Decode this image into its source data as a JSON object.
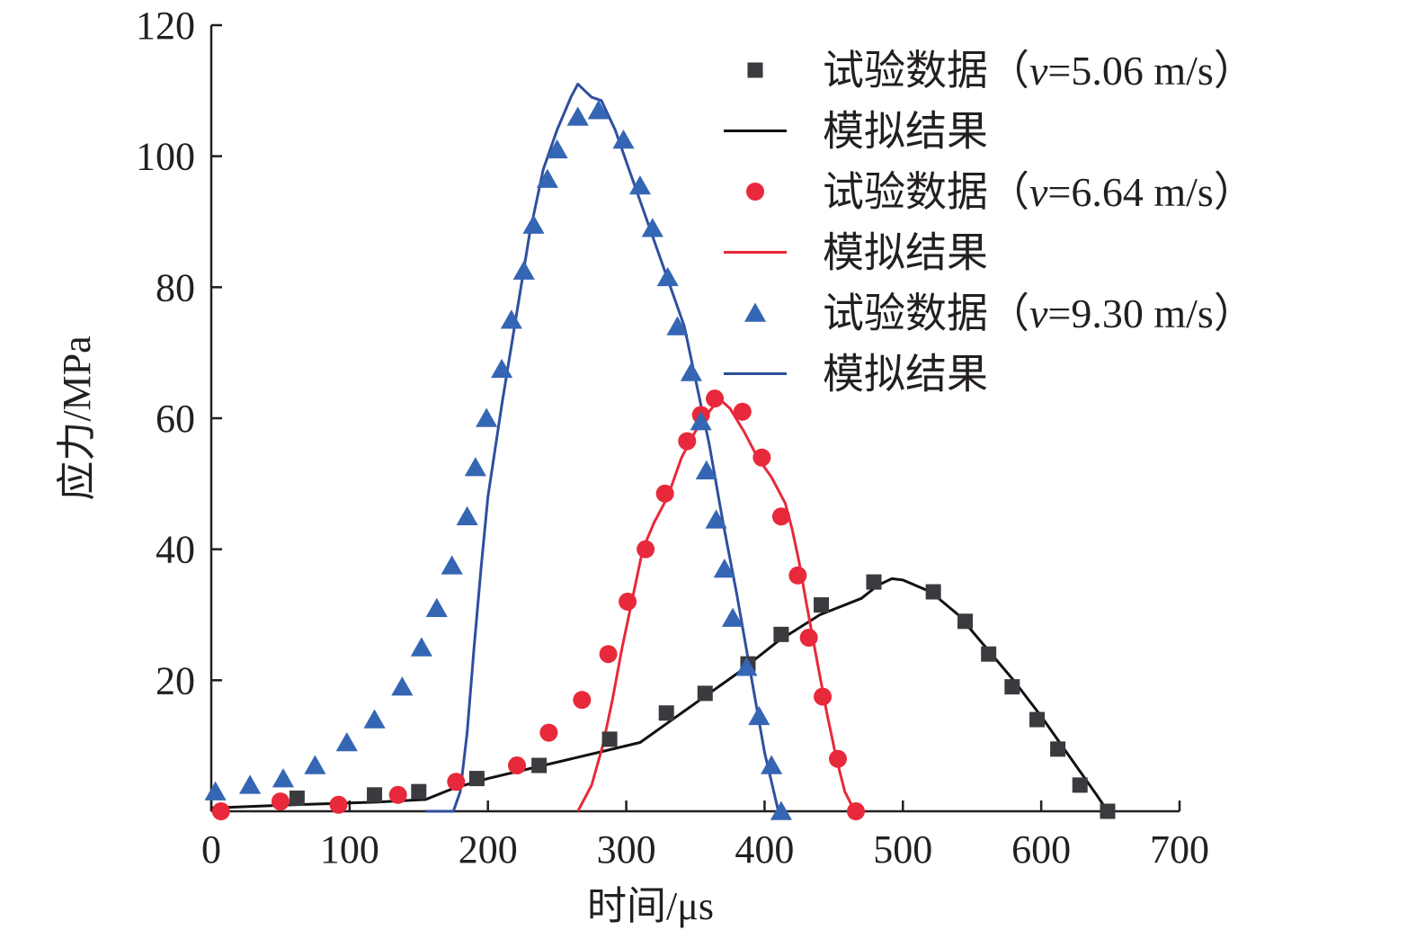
{
  "chart_data": {
    "type": "scatter",
    "title": "",
    "xlabel": "时间/μs",
    "ylabel": "应力/MPa",
    "xlim": [
      0,
      700
    ],
    "ylim": [
      0,
      120
    ],
    "xticks": [
      0,
      100,
      200,
      300,
      400,
      500,
      600,
      700
    ],
    "yticks": [
      20,
      40,
      60,
      80,
      100,
      120
    ],
    "grid": false,
    "legend_position": "top-right",
    "series": [
      {
        "name": "试验数据（v=5.06 m/s）",
        "name_prefix": "试验数据（",
        "name_var": "v",
        "name_suffix": "=5.06 m/s）",
        "kind": "markers",
        "marker": "square",
        "color": "#3a3a3f",
        "x": [
          62,
          118,
          150,
          192,
          237,
          288,
          329,
          357,
          388,
          412,
          441,
          479,
          522,
          545,
          562,
          579,
          597,
          612,
          628,
          648
        ],
        "y": [
          2,
          2.5,
          3,
          5,
          7,
          11,
          15,
          18,
          22.5,
          27,
          31.5,
          35,
          33.5,
          29,
          24,
          19,
          14,
          9.5,
          4,
          0
        ]
      },
      {
        "name": "模拟结果",
        "kind": "line",
        "color": "#111111",
        "x": [
          0,
          60,
          120,
          155,
          175,
          200,
          240,
          280,
          310,
          330,
          350,
          380,
          410,
          440,
          470,
          482,
          492,
          500,
          520,
          540,
          560,
          580,
          600,
          620,
          640,
          648
        ],
        "y": [
          0.5,
          1,
          1.4,
          1.8,
          3.5,
          5,
          7,
          9,
          10.5,
          13.5,
          16.5,
          21,
          26,
          30,
          32.5,
          34.5,
          35.5,
          35.3,
          33.5,
          30,
          25,
          20,
          14.5,
          8.5,
          2.5,
          0
        ]
      },
      {
        "name": "试验数据（v=6.64 m/s）",
        "name_prefix": "试验数据（",
        "name_var": "v",
        "name_suffix": "=6.64 m/s）",
        "kind": "markers",
        "marker": "circle",
        "color": "#e8293b",
        "x": [
          7,
          50,
          92,
          135,
          177,
          221,
          244,
          268,
          287,
          301,
          314,
          328,
          344,
          354,
          364,
          384,
          398,
          412,
          424,
          432,
          442,
          453,
          466
        ],
        "y": [
          0,
          1.5,
          1,
          2.5,
          4.5,
          7,
          12,
          17,
          24,
          32,
          40,
          48.5,
          56.5,
          60.5,
          63,
          61,
          54,
          45,
          36,
          26.5,
          17.5,
          8,
          0
        ]
      },
      {
        "name": "模拟结果",
        "kind": "line",
        "color": "#e8293b",
        "x": [
          265,
          275,
          283,
          290,
          297,
          305,
          312,
          320,
          330,
          340,
          350,
          360,
          367,
          375,
          385,
          395,
          405,
          415,
          420,
          425,
          430,
          437,
          445,
          452,
          458,
          464,
          467
        ],
        "y": [
          0,
          4,
          10,
          17,
          25,
          33,
          40,
          44,
          48,
          54,
          58,
          61,
          63,
          61.5,
          58,
          54,
          51,
          47,
          43,
          38,
          32,
          24,
          15,
          8,
          3,
          0.5,
          0
        ]
      },
      {
        "name": "试验数据（v=9.30 m/s）",
        "name_prefix": "试验数据（",
        "name_var": "v",
        "name_suffix": "=9.30 m/s）",
        "kind": "markers",
        "marker": "triangle",
        "color": "#3466b4",
        "x": [
          3,
          28,
          52,
          75,
          98,
          118,
          138,
          152,
          163,
          174,
          185,
          191,
          199,
          210,
          217,
          226,
          233,
          243,
          250,
          265,
          280,
          298,
          310,
          319,
          330,
          337,
          347,
          354,
          358,
          365,
          371,
          377,
          387,
          396,
          405,
          412
        ],
        "y": [
          3,
          4,
          5,
          7,
          10.5,
          14,
          19,
          25,
          31,
          37.5,
          45,
          52.5,
          60,
          67.5,
          75,
          82.5,
          89.5,
          96.5,
          101,
          106,
          107,
          102.5,
          95.5,
          89,
          81.5,
          74,
          67,
          59.5,
          52,
          44.5,
          37,
          29.5,
          22,
          14.5,
          7,
          0
        ]
      },
      {
        "name": "模拟结果",
        "kind": "line",
        "color": "#2f4f9e",
        "x": [
          155,
          175,
          180,
          185,
          190,
          195,
          200,
          210,
          220,
          230,
          240,
          250,
          260,
          265,
          270,
          275,
          282,
          292,
          302,
          312,
          322,
          332,
          342,
          350,
          360,
          370,
          380,
          390,
          400,
          410
        ],
        "y": [
          0,
          0,
          3,
          12,
          25,
          37,
          48,
          62,
          75,
          88,
          98,
          104,
          109,
          111,
          110,
          109,
          108.5,
          104,
          98,
          92,
          86,
          80,
          74,
          66,
          56,
          44,
          33,
          21,
          9,
          0
        ]
      }
    ]
  }
}
